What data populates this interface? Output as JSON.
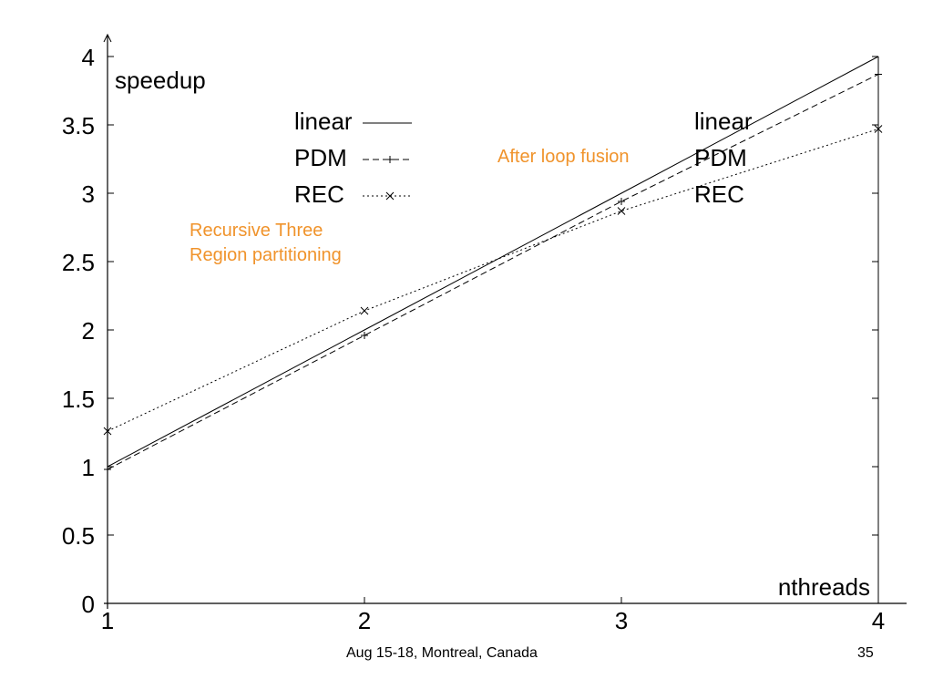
{
  "chart_data": {
    "type": "line",
    "x": [
      1,
      2,
      3,
      4
    ],
    "xlim": [
      1,
      4
    ],
    "ylim": [
      0,
      4
    ],
    "x_ticks": [
      "1",
      "2",
      "3",
      "4"
    ],
    "y_ticks": [
      "0",
      "0.5",
      "1",
      "1.5",
      "2",
      "2.5",
      "3",
      "3.5",
      "4"
    ],
    "ylabel": "speedup",
    "xlabel": "nthreads",
    "grid": false,
    "series": [
      {
        "name": "linear",
        "style": "solid",
        "marker": "none",
        "values": [
          1,
          2,
          3,
          4
        ]
      },
      {
        "name": "PDM",
        "style": "dashed",
        "marker": "plus",
        "values": [
          0.98,
          1.96,
          2.94,
          3.87
        ]
      },
      {
        "name": "REC",
        "style": "dotted",
        "marker": "cross",
        "values": [
          1.26,
          2.14,
          2.87,
          3.47
        ]
      }
    ],
    "legend_left_labels": [
      "linear",
      "PDM",
      "REC"
    ],
    "legend_right_labels": [
      "linear",
      "PDM",
      "REC"
    ]
  },
  "annotations": {
    "left_note_line1": "Recursive Three",
    "left_note_line2": "Region partitioning",
    "right_note": "After loop fusion"
  },
  "footer": {
    "center": "Aug 15-18, Montreal, Canada",
    "page_number": "35"
  },
  "colors": {
    "annotation": "#f0932b",
    "ink": "#000000"
  }
}
